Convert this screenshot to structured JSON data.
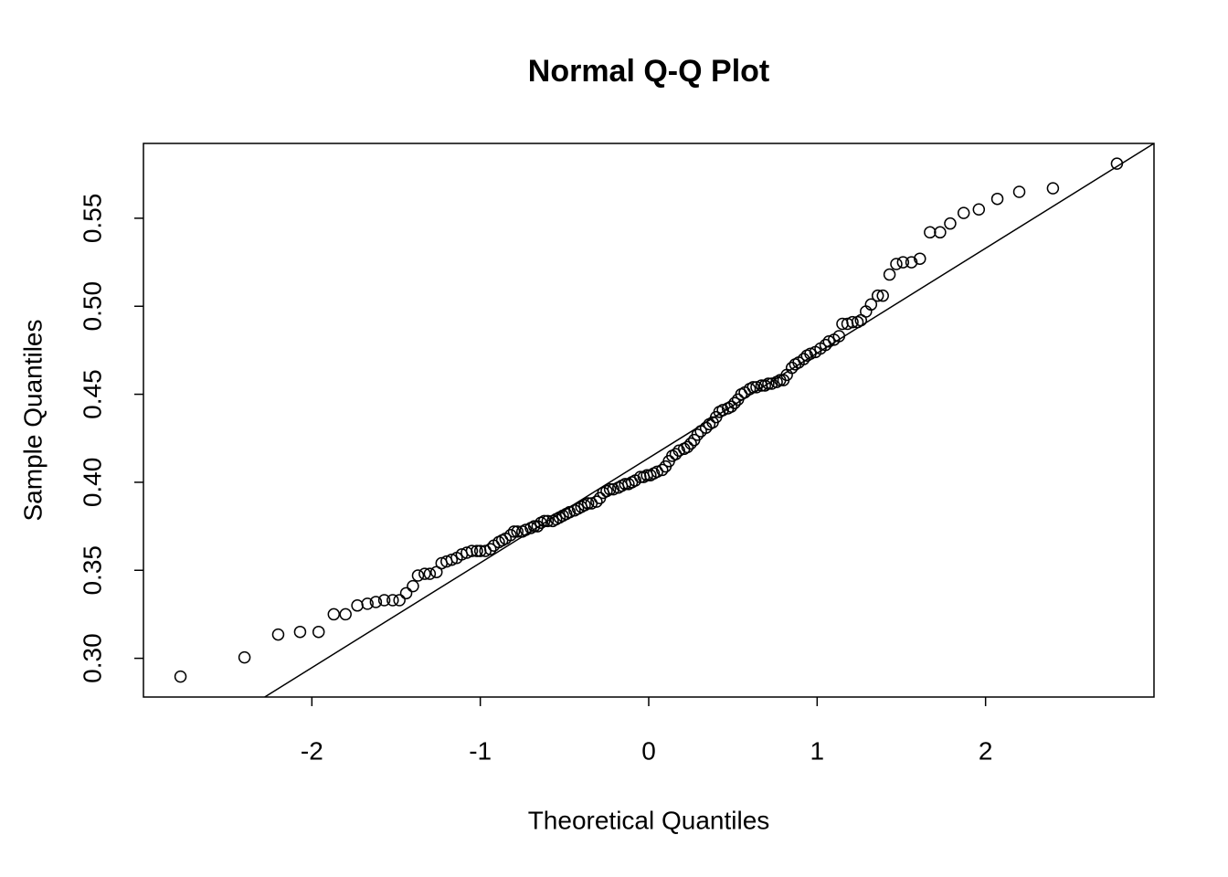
{
  "chart_data": {
    "type": "scatter",
    "title": "Normal Q-Q Plot",
    "x_label": "Theoretical Quantiles",
    "y_label": "Sample Quantiles",
    "xlim": [
      -3.0,
      3.0
    ],
    "ylim": [
      0.278,
      0.5925
    ],
    "xticks": [
      -2,
      -1,
      0,
      1,
      2
    ],
    "yticks": [
      {
        "value": 0.3,
        "label": "0.30"
      },
      0.35,
      {
        "value": 0.4,
        "label": "0.40"
      },
      0.45,
      {
        "value": 0.5,
        "label": "0.50"
      },
      0.55
    ],
    "color": "#000000",
    "x": [
      -2.78,
      -2.4,
      -2.2,
      -2.07,
      -1.96,
      -1.87,
      -1.8,
      -1.73,
      -1.67,
      -1.62,
      -1.57,
      -1.52,
      -1.48,
      -1.44,
      -1.4,
      -1.37,
      -1.33,
      -1.3,
      -1.26,
      -1.23,
      -1.2,
      -1.17,
      -1.14,
      -1.11,
      -1.08,
      -1.05,
      -1.02,
      -1.0,
      -0.97,
      -0.94,
      -0.92,
      -0.89,
      -0.87,
      -0.85,
      -0.82,
      -0.8,
      -0.78,
      -0.75,
      -0.73,
      -0.7,
      -0.68,
      -0.66,
      -0.64,
      -0.62,
      -0.6,
      -0.57,
      -0.55,
      -0.53,
      -0.51,
      -0.49,
      -0.47,
      -0.44,
      -0.42,
      -0.4,
      -0.38,
      -0.36,
      -0.34,
      -0.31,
      -0.29,
      -0.27,
      -0.25,
      -0.23,
      -0.21,
      -0.18,
      -0.16,
      -0.14,
      -0.12,
      -0.1,
      -0.08,
      -0.05,
      -0.03,
      -0.01,
      0.01,
      0.03,
      0.05,
      0.08,
      0.1,
      0.12,
      0.14,
      0.16,
      0.18,
      0.21,
      0.23,
      0.25,
      0.27,
      0.29,
      0.31,
      0.34,
      0.36,
      0.38,
      0.4,
      0.42,
      0.44,
      0.47,
      0.49,
      0.51,
      0.53,
      0.55,
      0.57,
      0.6,
      0.62,
      0.64,
      0.67,
      0.69,
      0.71,
      0.73,
      0.76,
      0.78,
      0.8,
      0.82,
      0.85,
      0.87,
      0.89,
      0.92,
      0.94,
      0.96,
      0.99,
      1.02,
      1.05,
      1.07,
      1.1,
      1.13,
      1.15,
      1.18,
      1.21,
      1.24,
      1.26,
      1.29,
      1.32,
      1.36,
      1.39,
      1.43,
      1.47,
      1.51,
      1.56,
      1.61,
      1.67,
      1.73,
      1.79,
      1.87,
      1.96,
      2.07,
      2.2,
      2.4,
      2.78
    ],
    "values": [
      0.2896,
      0.3005,
      0.3135,
      0.315,
      0.315,
      0.325,
      0.325,
      0.33,
      0.331,
      0.332,
      0.333,
      0.333,
      0.333,
      0.337,
      0.341,
      0.347,
      0.348,
      0.348,
      0.349,
      0.354,
      0.355,
      0.356,
      0.357,
      0.359,
      0.36,
      0.361,
      0.361,
      0.361,
      0.361,
      0.362,
      0.364,
      0.366,
      0.367,
      0.368,
      0.37,
      0.372,
      0.372,
      0.372,
      0.373,
      0.374,
      0.375,
      0.375,
      0.377,
      0.378,
      0.378,
      0.378,
      0.379,
      0.38,
      0.381,
      0.382,
      0.383,
      0.384,
      0.385,
      0.386,
      0.387,
      0.388,
      0.388,
      0.389,
      0.391,
      0.394,
      0.395,
      0.396,
      0.396,
      0.397,
      0.398,
      0.399,
      0.399,
      0.4,
      0.401,
      0.403,
      0.403,
      0.404,
      0.404,
      0.405,
      0.406,
      0.407,
      0.409,
      0.412,
      0.415,
      0.416,
      0.418,
      0.419,
      0.42,
      0.422,
      0.424,
      0.427,
      0.429,
      0.431,
      0.433,
      0.434,
      0.437,
      0.44,
      0.441,
      0.442,
      0.443,
      0.445,
      0.447,
      0.45,
      0.451,
      0.453,
      0.454,
      0.454,
      0.455,
      0.455,
      0.456,
      0.456,
      0.457,
      0.458,
      0.458,
      0.461,
      0.465,
      0.467,
      0.468,
      0.47,
      0.472,
      0.473,
      0.474,
      0.476,
      0.478,
      0.48,
      0.481,
      0.483,
      0.49,
      0.49,
      0.491,
      0.491,
      0.492,
      0.497,
      0.501,
      0.506,
      0.506,
      0.518,
      0.524,
      0.525,
      0.525,
      0.527,
      0.542,
      0.542,
      0.547,
      0.553,
      0.555,
      0.561,
      0.565,
      0.567,
      0.581
    ],
    "line": {
      "x": [
        -2.28,
        3.0
      ],
      "y": [
        0.278,
        0.5925
      ]
    }
  }
}
